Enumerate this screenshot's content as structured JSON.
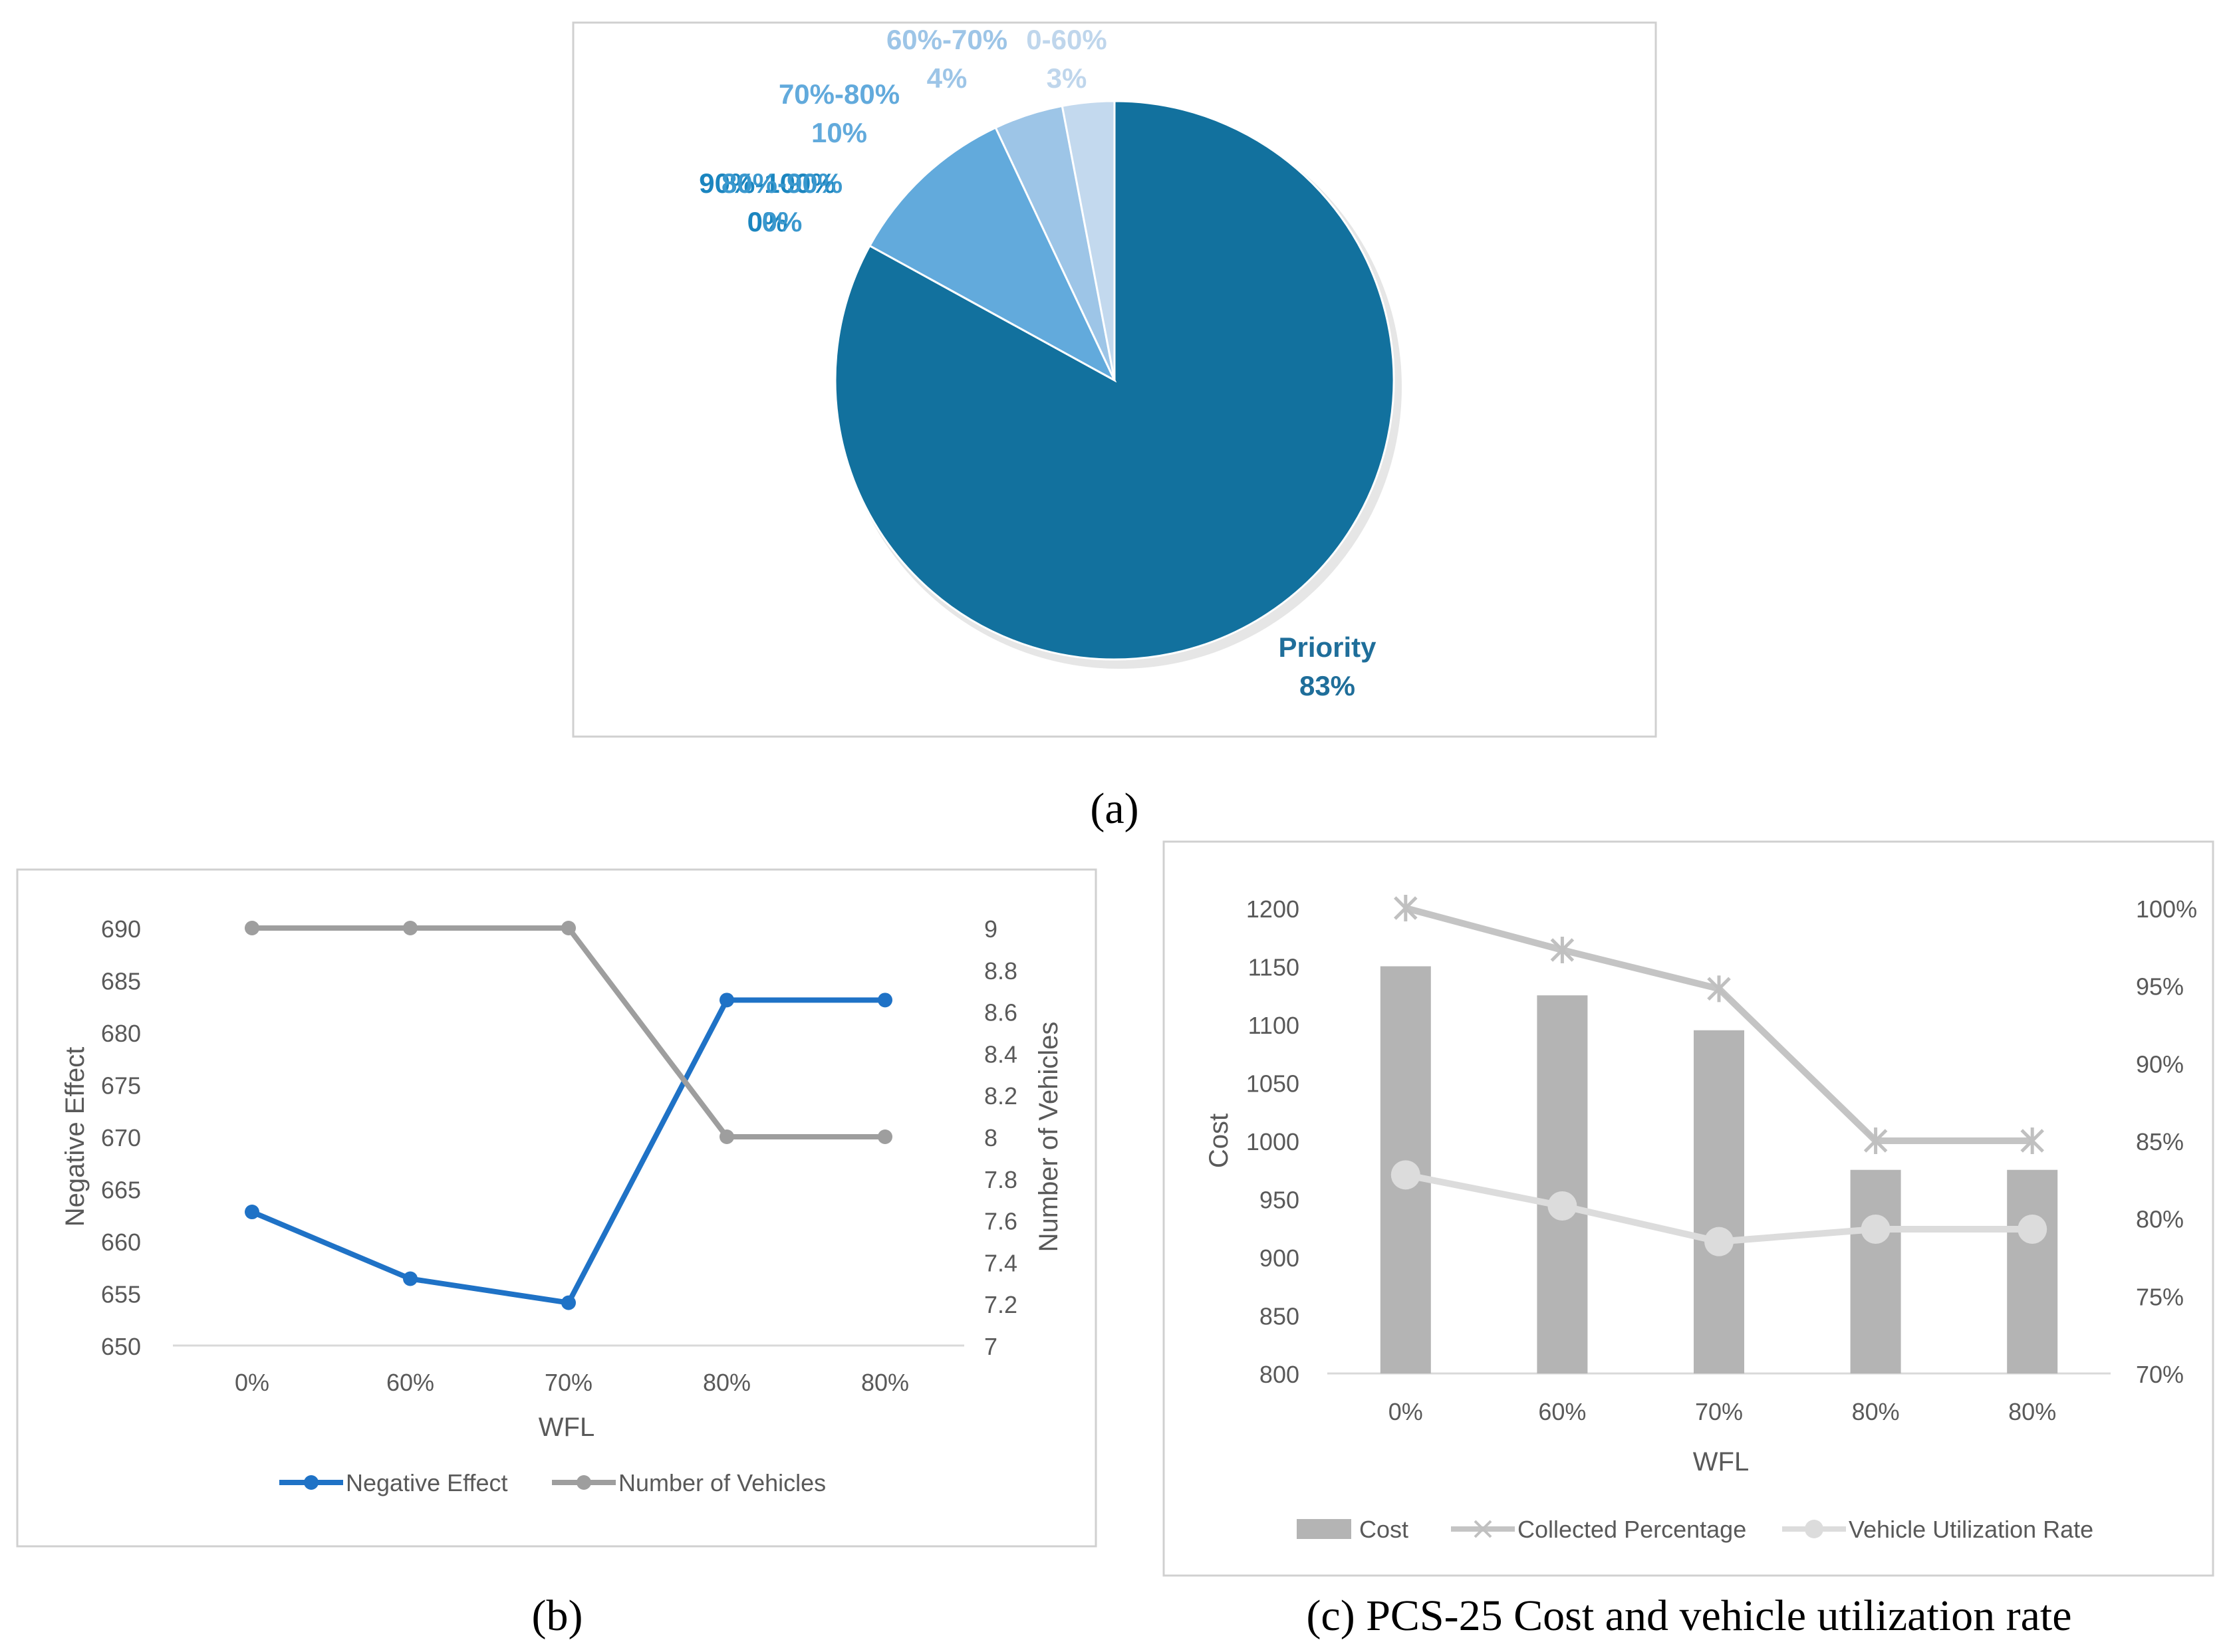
{
  "chart_data": [
    {
      "id": "a",
      "type": "pie",
      "caption": "(a)",
      "slices": [
        {
          "label": "Priority",
          "value": 83,
          "pct_label": "83%",
          "color": "#12719E"
        },
        {
          "label": "70%-80%",
          "value": 10,
          "pct_label": "10%",
          "color": "#62AADC"
        },
        {
          "label": "60%-70%",
          "value": 4,
          "pct_label": "4%",
          "color": "#9DC5E7"
        },
        {
          "label": "0-60%",
          "value": 3,
          "pct_label": "3%",
          "color": "#C3D9EE"
        },
        {
          "label": "90%-100%",
          "value": 0,
          "pct_label": "0%",
          "color": "#1A85BF"
        },
        {
          "label": "80%-90%",
          "value": 0,
          "pct_label": "0%",
          "color": "#3A98CE"
        }
      ]
    },
    {
      "id": "b",
      "type": "line",
      "caption": "(b)",
      "categories": [
        "0%",
        "60%",
        "70%",
        "80%",
        "80%"
      ],
      "xlabel": "WFL",
      "ylabel": "Negative Effect",
      "y2label": "Number of Vehicles",
      "ylim": [
        650,
        690
      ],
      "yticks": [
        "650",
        "655",
        "660",
        "665",
        "670",
        "675",
        "680",
        "685",
        "690"
      ],
      "y2lim": [
        7,
        9
      ],
      "y2ticks": [
        "7",
        "7.2",
        "7.4",
        "7.6",
        "7.8",
        "8",
        "8.2",
        "8.4",
        "8.6",
        "8.8",
        "9"
      ],
      "series": [
        {
          "name": "Negative Effect",
          "axis": "left",
          "values": [
            662.8,
            656.4,
            654.1,
            683.1,
            683.1
          ],
          "color": "#1F72C6"
        },
        {
          "name": "Number of Vehicles",
          "axis": "right",
          "values": [
            9,
            9,
            9,
            8,
            8
          ],
          "color": "#9E9E9E"
        }
      ]
    },
    {
      "id": "c",
      "type": "bar",
      "caption": "(c) PCS-25 Cost and vehicle utilization rate",
      "categories": [
        "0%",
        "60%",
        "70%",
        "80%",
        "80%"
      ],
      "xlabel": "WFL",
      "ylabel": "Cost",
      "ylim": [
        800,
        1200
      ],
      "yticks": [
        "800",
        "850",
        "900",
        "950",
        "1000",
        "1050",
        "1100",
        "1150",
        "1200"
      ],
      "y2lim": [
        70,
        100
      ],
      "y2ticks": [
        "70%",
        "75%",
        "80%",
        "85%",
        "90%",
        "95%",
        "100%"
      ],
      "series": [
        {
          "name": "Cost",
          "kind": "bar",
          "axis": "left",
          "values": [
            1150,
            1125,
            1095,
            975,
            975
          ],
          "color": "#B4B4B4"
        },
        {
          "name": "Collected Percentage",
          "kind": "line",
          "axis": "right",
          "values": [
            100,
            97.3,
            94.8,
            85,
            85
          ],
          "color": "#C4C4C4"
        },
        {
          "name": "Vehicle Utilization Rate",
          "kind": "line",
          "axis": "right",
          "values": [
            82.8,
            80.8,
            78.5,
            79.3,
            79.3
          ],
          "color": "#DCDCDC"
        }
      ]
    }
  ]
}
